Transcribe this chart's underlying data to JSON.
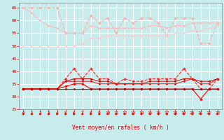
{
  "xlabel": "Vent moyen/en rafales ( km/h )",
  "background_color": "#c8ecec",
  "grid_color": "#ffffff",
  "x_ticks": [
    0,
    1,
    2,
    3,
    4,
    5,
    6,
    7,
    8,
    9,
    10,
    11,
    12,
    13,
    14,
    15,
    16,
    17,
    18,
    19,
    20,
    21,
    22,
    23
  ],
  "ylim": [
    25,
    67
  ],
  "yticks": [
    25,
    30,
    35,
    40,
    45,
    50,
    55,
    60,
    65
  ],
  "series": [
    {
      "y": [
        65,
        65,
        65,
        65,
        65,
        55,
        55,
        55,
        62,
        59,
        61,
        55,
        61,
        59,
        61,
        61,
        59,
        54,
        61,
        61,
        61,
        51,
        51,
        59
      ],
      "color": "#ffaaaa",
      "marker": "D",
      "markersize": 1.8,
      "linewidth": 0.8,
      "linestyle": "--"
    },
    {
      "y": [
        65,
        63,
        60,
        58,
        57,
        55,
        55,
        55,
        58,
        57,
        57,
        57,
        57,
        57,
        57,
        58,
        58,
        57,
        58,
        58,
        59,
        59,
        59,
        59
      ],
      "color": "#ffbbbb",
      "marker": "D",
      "markersize": 1.5,
      "linewidth": 0.7,
      "linestyle": "-"
    },
    {
      "y": [
        50,
        50,
        50,
        50,
        50,
        50,
        50,
        51,
        53,
        53,
        54,
        54,
        54,
        54,
        54,
        54,
        54,
        54,
        55,
        55,
        56,
        56,
        57,
        58
      ],
      "color": "#ffcccc",
      "marker": "D",
      "markersize": 1.5,
      "linewidth": 0.7,
      "linestyle": "-"
    },
    {
      "y": [
        33,
        33,
        33,
        33,
        33,
        37,
        41,
        37,
        41,
        37,
        37,
        35,
        37,
        36,
        36,
        37,
        37,
        37,
        37,
        41,
        37,
        33,
        33,
        37
      ],
      "color": "#ff2222",
      "marker": "D",
      "markersize": 1.8,
      "linewidth": 0.8,
      "linestyle": "--"
    },
    {
      "y": [
        33,
        33,
        33,
        33,
        33,
        36,
        37,
        37,
        37,
        36,
        36,
        35,
        35,
        35,
        35,
        36,
        36,
        36,
        36,
        37,
        37,
        36,
        36,
        37
      ],
      "color": "#cc0000",
      "marker": "D",
      "markersize": 1.5,
      "linewidth": 0.7,
      "linestyle": "-"
    },
    {
      "y": [
        33,
        33,
        33,
        33,
        33,
        36,
        36,
        36,
        36,
        35,
        35,
        35,
        35,
        35,
        35,
        35,
        35,
        35,
        35,
        36,
        37,
        35,
        35,
        37
      ],
      "color": "#dd1111",
      "marker": "D",
      "markersize": 1.5,
      "linewidth": 0.7,
      "linestyle": "-"
    },
    {
      "y": [
        33,
        33,
        33,
        33,
        33,
        34,
        35,
        35,
        33,
        33,
        33,
        33,
        33,
        33,
        33,
        33,
        33,
        33,
        33,
        33,
        33,
        29,
        33,
        33
      ],
      "color": "#ff0000",
      "marker": "D",
      "markersize": 1.8,
      "linewidth": 0.8,
      "linestyle": "-"
    },
    {
      "y": [
        33,
        33,
        33,
        33,
        33,
        33,
        33,
        33,
        33,
        33,
        33,
        33,
        33,
        33,
        33,
        33,
        33,
        33,
        33,
        33,
        33,
        33,
        33,
        33
      ],
      "color": "#990000",
      "marker": "D",
      "markersize": 1.5,
      "linewidth": 0.7,
      "linestyle": "-"
    }
  ]
}
